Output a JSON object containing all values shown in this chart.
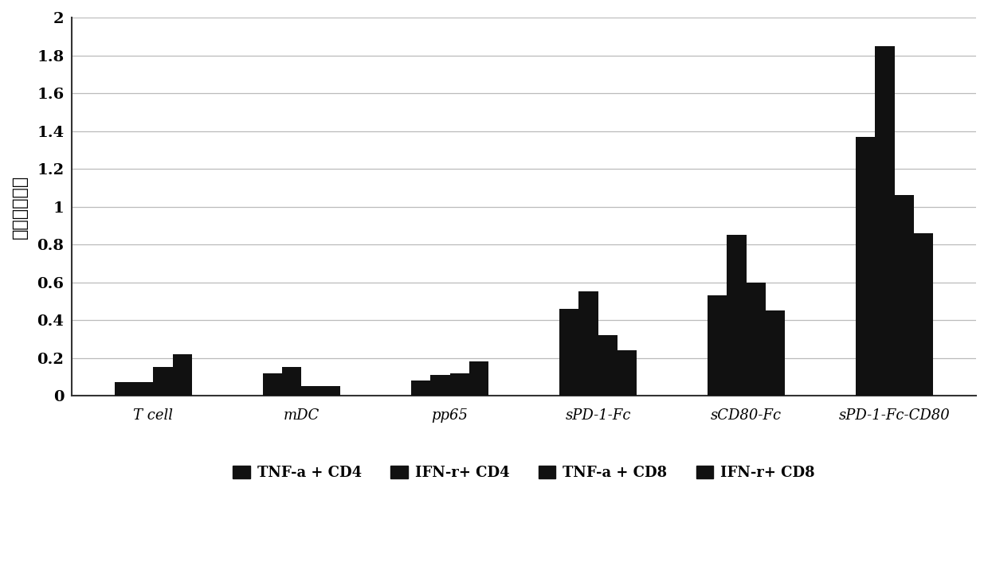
{
  "categories": [
    "T cell",
    "mDC",
    "pp65",
    "sPD-1-Fc",
    "sCD80-Fc",
    "sPD-1-Fc-CD80"
  ],
  "series": {
    "TNF-a + CD4": [
      0.07,
      0.12,
      0.08,
      0.46,
      0.53,
      1.37
    ],
    "IFN-r+ CD4": [
      0.07,
      0.15,
      0.11,
      0.55,
      0.85,
      1.85
    ],
    "TNF-a + CD8": [
      0.15,
      0.05,
      0.12,
      0.32,
      0.6,
      1.06
    ],
    "IFN-r+ CD8": [
      0.22,
      0.05,
      0.18,
      0.24,
      0.45,
      0.86
    ]
  },
  "bar_color": "#111111",
  "ylabel": "阳性细胞比例",
  "ylim": [
    0,
    2.0
  ],
  "yticks": [
    0,
    0.2,
    0.4,
    0.6,
    0.8,
    1.0,
    1.2,
    1.4,
    1.6,
    1.8,
    2.0
  ],
  "bar_width": 0.13,
  "background_color": "#ffffff",
  "legend_entries": [
    "TNF-a + CD4",
    "IFN-r+ CD4",
    "TNF-a + CD8",
    "IFN-r+ CD8"
  ],
  "grid_color": "#bbbbbb"
}
